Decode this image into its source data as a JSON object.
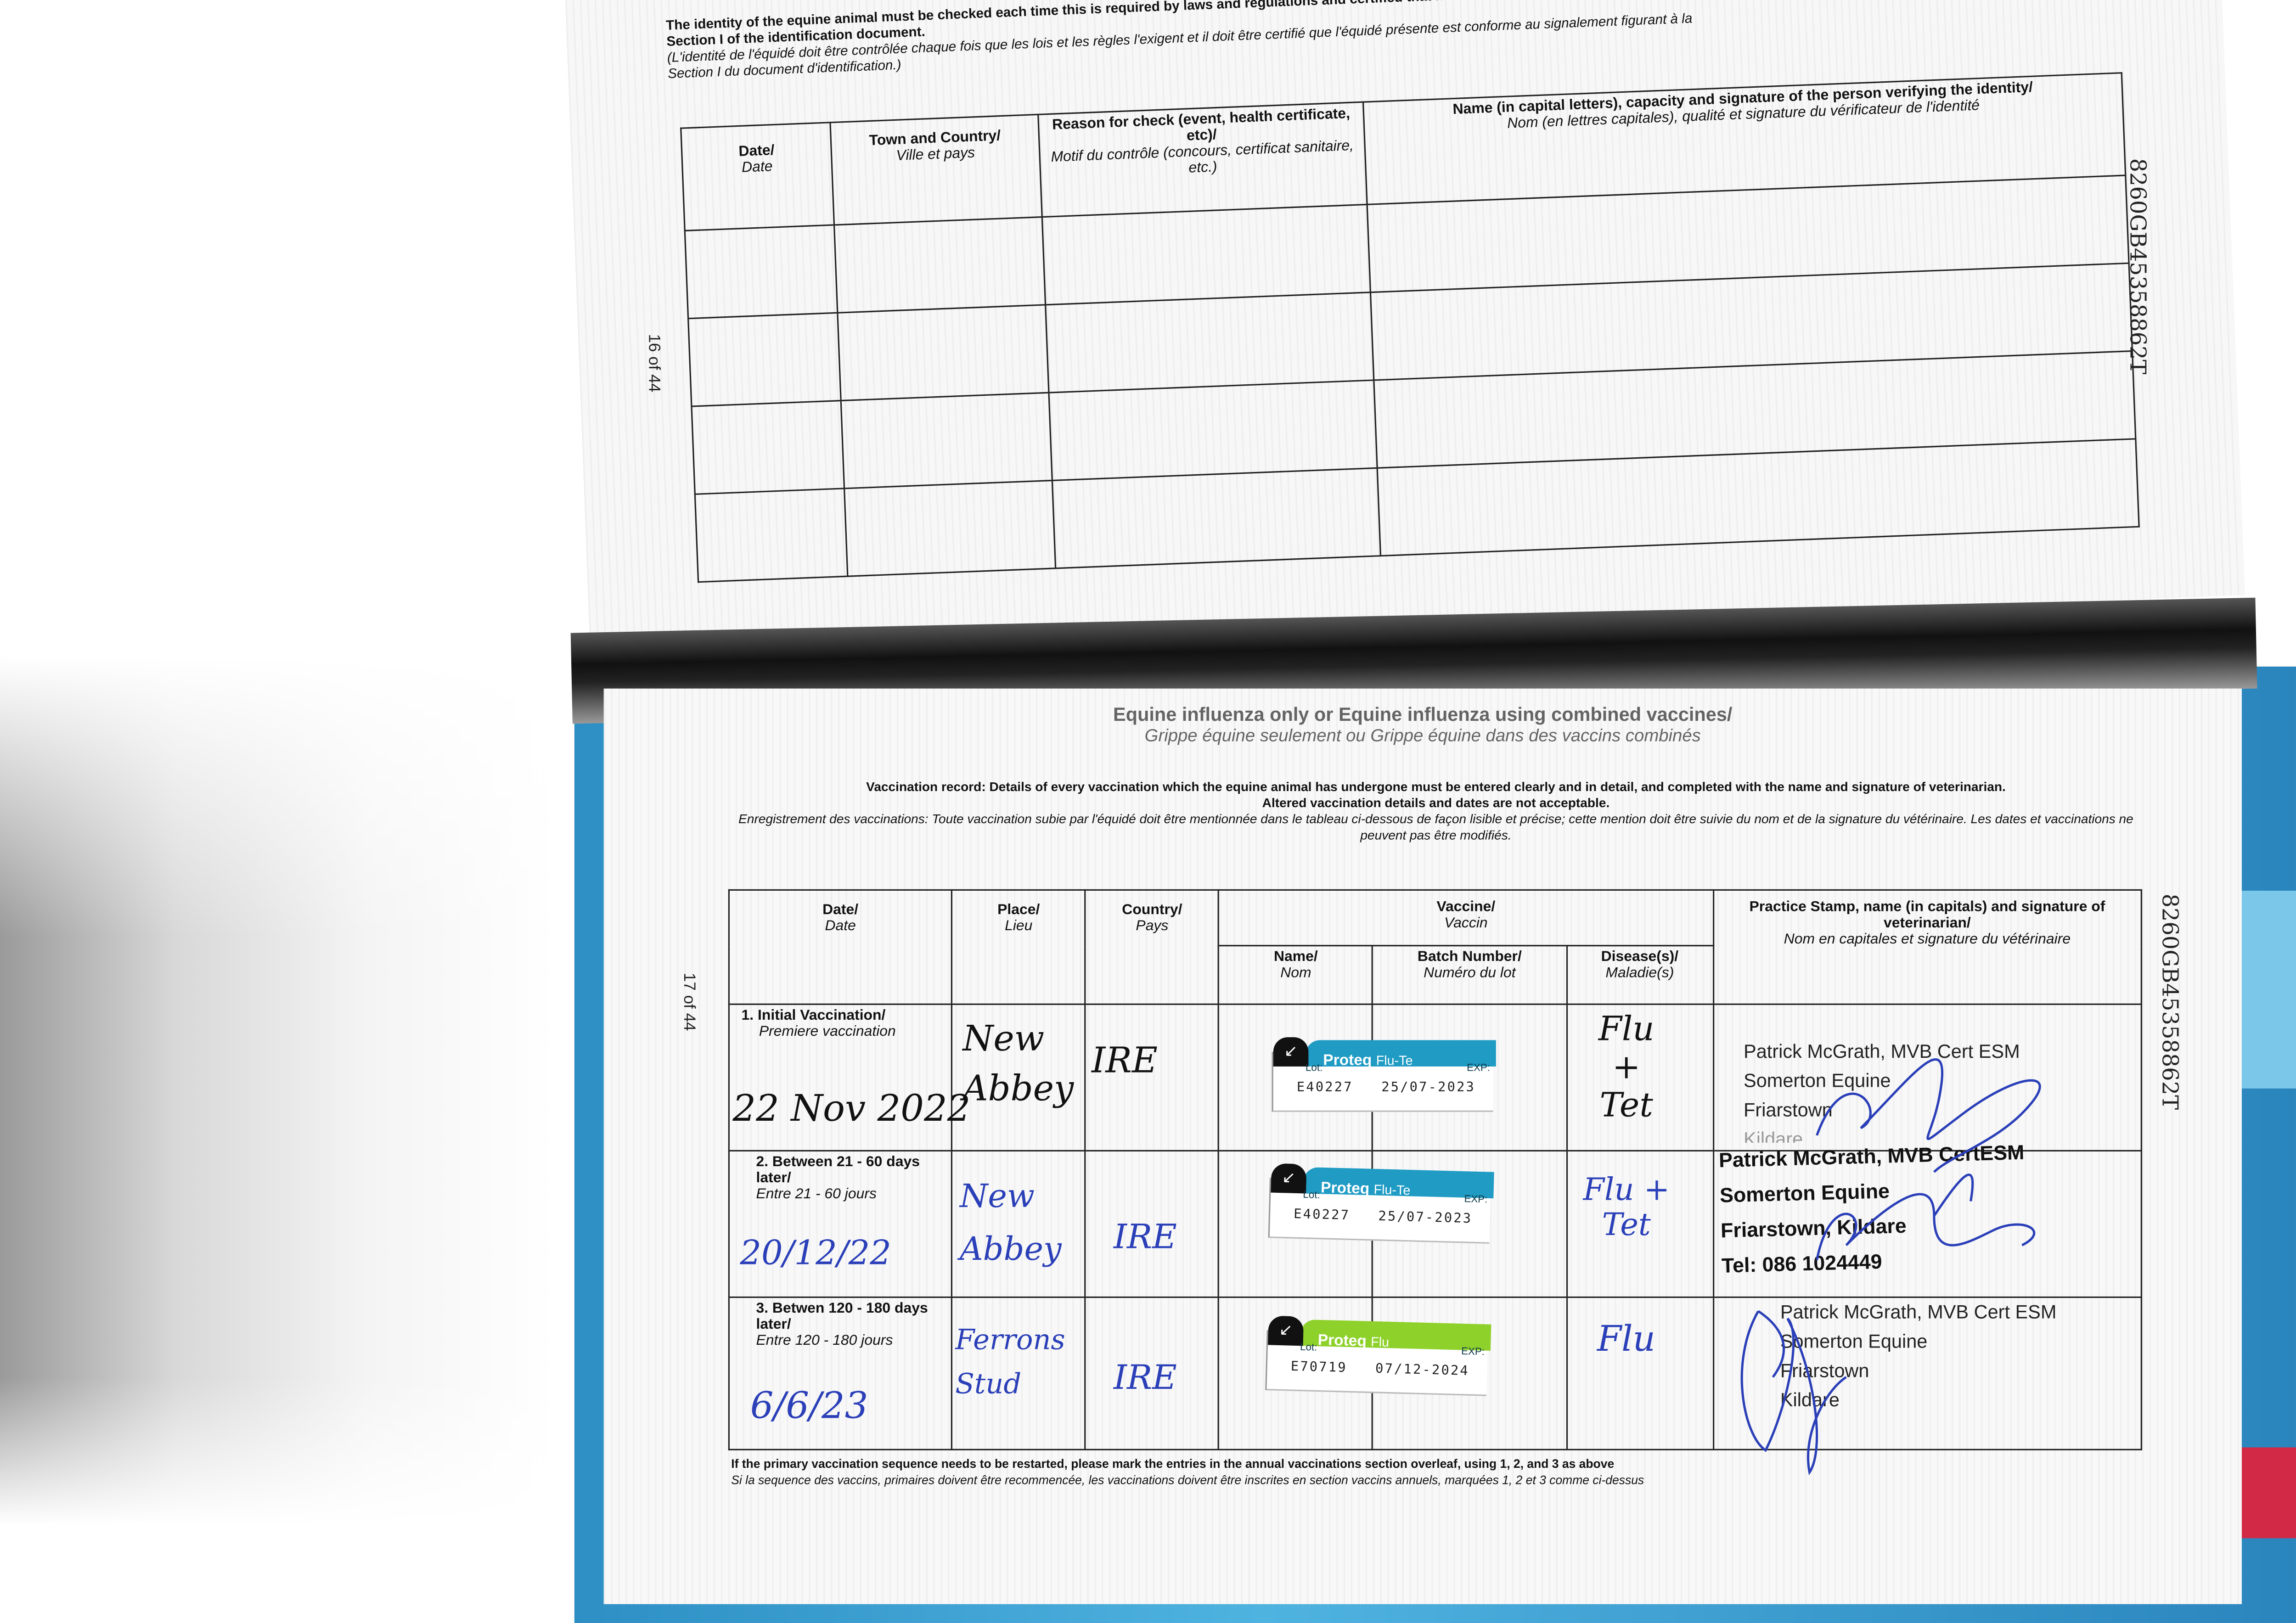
{
  "top_page": {
    "intro_en": "The identity of the equine animal must be checked each time this is required by laws and regulations and certified that it conforms to the description given in Section I of the identification document.",
    "intro_fr": "(L'identité de l'équidé doit être contrôlée chaque fois que les lois et les règles l'exigent et il doit être certifié que l'équidé présente est conforme au signalement figurant à la Section I du document d'identification.)",
    "page_number": "16 of 44",
    "passport_number": "8260GB45358862T",
    "columns": [
      {
        "en": "Date/",
        "fr": "Date"
      },
      {
        "en": "Town and Country/",
        "fr": "Ville et pays"
      },
      {
        "en": "Reason for check (event, health certificate, etc)/",
        "fr": "Motif du contrôle (concours, certificat sanitaire, etc.)"
      },
      {
        "en": "Name (in capital letters), capacity and signature of the person verifying the identity/",
        "fr": "Nom (en lettres capitales), qualité et signature du vérificateur de l'identité"
      }
    ]
  },
  "bottom_page": {
    "section_title_en": "Equine influenza only or Equine influenza using combined vaccines/",
    "section_title_fr": "Grippe équine seulement ou Grippe équine dans des vaccins combinés",
    "intro_en": "Vaccination record: Details of every vaccination which the equine animal has undergone must be entered clearly and in detail, and completed with the name and signature of veterinarian.",
    "intro_en_2": "Altered vaccination details and dates are not acceptable.",
    "intro_fr": "Enregistrement des vaccinations: Toute vaccination subie par l'équidé doit être mentionnée dans le tableau ci-dessous de façon lisible et précise; cette mention doit être suivie du nom et de la signature du vétérinaire. Les dates et vaccinations ne peuvent pas être modifiés.",
    "page_number": "17 of 44",
    "passport_number": "8260GB45358862T",
    "headers": {
      "date": {
        "en": "Date/",
        "fr": "Date"
      },
      "place": {
        "en": "Place/",
        "fr": "Lieu"
      },
      "country": {
        "en": "Country/",
        "fr": "Pays"
      },
      "vaccine": {
        "en": "Vaccine/",
        "fr": "Vaccin"
      },
      "name": {
        "en": "Name/",
        "fr": "Nom"
      },
      "batch": {
        "en": "Batch Number/",
        "fr": "Numéro du lot"
      },
      "disease": {
        "en": "Disease(s)/",
        "fr": "Maladie(s)"
      },
      "practice": {
        "en": "Practice Stamp, name (in capitals) and signature of veterinarian/",
        "fr": "Nom en capitales et signature du vétérinaire"
      }
    },
    "rows": [
      {
        "label_en": "1. Initial Vaccination/",
        "label_fr": "Premiere vaccination",
        "date": "22 Nov 2022",
        "place": "New Abbey",
        "country": "IRE",
        "vaccine_brand": "Proteq",
        "vaccine_variant": "Flu-Te",
        "lot_label": "Lot:",
        "exp_label": "EXP:",
        "lot": "E40227",
        "exp": "25/07-2023",
        "band_color": "#1f9bc4",
        "disease": "Flu + Tet",
        "stamp": [
          "Patrick McGrath, MVB Cert ESM",
          "Somerton Equine",
          "Friarstown",
          "Kildare"
        ]
      },
      {
        "label_en": "2. Between 21 - 60 days later/",
        "label_fr": "Entre 21 - 60 jours",
        "date": "20/12/22",
        "place": "New Abbey",
        "country": "IRE",
        "vaccine_brand": "Proteq",
        "vaccine_variant": "Flu-Te",
        "lot_label": "Lot:",
        "exp_label": "EXP:",
        "lot": "E40227",
        "exp": "25/07-2023",
        "band_color": "#1f9bc4",
        "disease": "Flu + Tet",
        "stamp": [
          "Patrick McGrath, MVB CertESM",
          "Somerton Equine",
          "Friarstown, Kildare",
          "Tel: 086 1024449"
        ]
      },
      {
        "label_en": "3. Betwen 120 - 180 days later/",
        "label_fr": "Entre 120 - 180 jours",
        "date": "6/6/23",
        "place": "Ferrons Stud",
        "country": "IRE",
        "vaccine_brand": "Proteq",
        "vaccine_variant": "Flu",
        "lot_label": "Lot:",
        "exp_label": "EXP:",
        "lot": "E70719",
        "exp": "07/12-2024",
        "band_color": "#8ed12a",
        "disease": "Flu",
        "stamp": [
          "Patrick McGrath, MVB Cert ESM",
          "Somerton Equine",
          "Friarstown",
          "Kildare"
        ]
      }
    ],
    "footer_en": "If the primary vaccination sequence needs to be restarted, please mark the entries in the annual vaccinations section overleaf, using 1, 2, and 3 as above",
    "footer_fr": "Si la sequence des vaccins, primaires doivent être recommencée, les vaccinations doivent être inscrites en section vaccins annuels, marquées 1, 2 et 3 comme ci-dessus"
  },
  "colors": {
    "cover": "#2d8fc4",
    "ink_blue": "#2a3fb8",
    "red_tab": "#d22a46"
  }
}
